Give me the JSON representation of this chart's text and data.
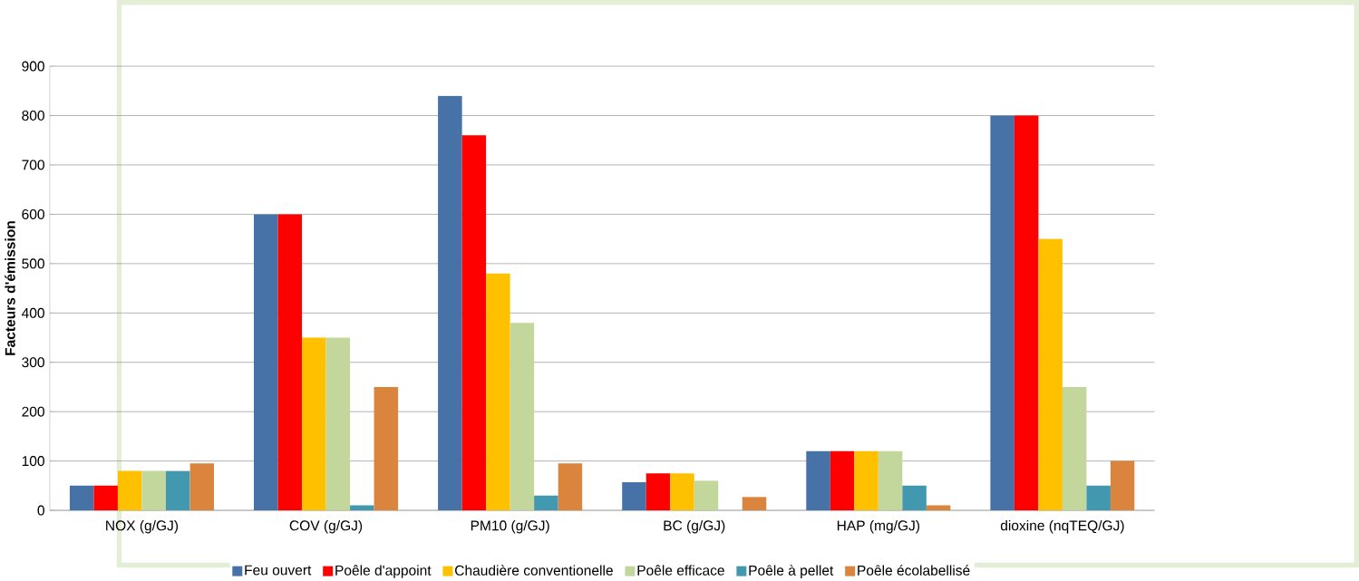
{
  "chart_data": {
    "type": "bar",
    "ylabel": "Facteurs d'émission",
    "categories": [
      "NOX (g/GJ)",
      "COV (g/GJ)",
      "PM10 (g/GJ)",
      "BC (g/GJ)",
      "HAP (mg/GJ)",
      "dioxine (nqTEQ/GJ)"
    ],
    "series": [
      {
        "name": "Feu ouvert",
        "color": "#4672a8",
        "values": [
          50,
          600,
          840,
          57,
          120,
          800
        ]
      },
      {
        "name": "Poêle d'appoint",
        "color": "#ff0000",
        "values": [
          50,
          600,
          760,
          75,
          120,
          800
        ]
      },
      {
        "name": "Chaudière conventionelle",
        "color": "#ffc000",
        "values": [
          80,
          350,
          480,
          75,
          120,
          550
        ]
      },
      {
        "name": "Poêle efficace",
        "color": "#c3d69b",
        "values": [
          80,
          350,
          380,
          60,
          120,
          250
        ]
      },
      {
        "name": "Poêle à pellet",
        "color": "#4198af",
        "values": [
          80,
          10,
          30,
          null,
          50,
          50
        ]
      },
      {
        "name": "Poêle écolabellisé",
        "color": "#db843d",
        "values": [
          95,
          250,
          95,
          27,
          10,
          100
        ]
      }
    ],
    "ylim": [
      0,
      900
    ],
    "yticks": [
      0,
      100,
      200,
      300,
      400,
      500,
      600,
      700,
      800,
      900
    ],
    "grid": "y",
    "legend": "bottom"
  }
}
